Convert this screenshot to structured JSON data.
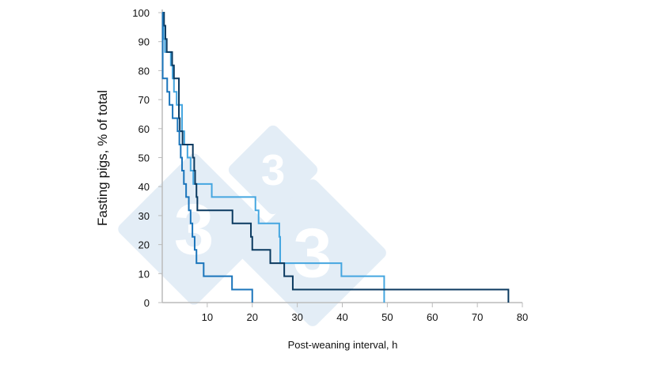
{
  "chart_data": {
    "type": "line",
    "step": true,
    "title": "",
    "xlabel": "Post-weaning interval, h",
    "ylabel": "Fasting pigs, % of total",
    "xlim": [
      0,
      80
    ],
    "ylim": [
      0,
      100
    ],
    "xticks": [
      10,
      20,
      30,
      40,
      50,
      60,
      70,
      80
    ],
    "yticks": [
      0,
      10,
      20,
      30,
      40,
      50,
      60,
      70,
      80,
      90,
      100
    ],
    "grid": false,
    "legend": "none",
    "series": [
      {
        "color": "#45a6e0",
        "points": [
          [
            0,
            100
          ],
          [
            0.3,
            90.9
          ],
          [
            0.6,
            86.4
          ],
          [
            1.9,
            81.8
          ],
          [
            2.3,
            77.3
          ],
          [
            2.6,
            72.7
          ],
          [
            3.2,
            68.2
          ],
          [
            4.4,
            59.1
          ],
          [
            4.9,
            54.5
          ],
          [
            5.6,
            50
          ],
          [
            6.3,
            45.5
          ],
          [
            6.9,
            40.9
          ],
          [
            11.0,
            36.4
          ],
          [
            20.7,
            31.8
          ],
          [
            21.4,
            27.3
          ],
          [
            26.0,
            22.7
          ],
          [
            26.2,
            13.6
          ],
          [
            39.8,
            9.1
          ],
          [
            49.3,
            0
          ]
        ]
      },
      {
        "color": "#0b3a60",
        "points": [
          [
            0,
            100
          ],
          [
            0.4,
            95.5
          ],
          [
            0.7,
            90.9
          ],
          [
            1.0,
            86.4
          ],
          [
            2.2,
            81.8
          ],
          [
            2.6,
            77.3
          ],
          [
            3.7,
            63.6
          ],
          [
            3.9,
            59.1
          ],
          [
            4.5,
            54.5
          ],
          [
            6.8,
            50
          ],
          [
            7.1,
            45.5
          ],
          [
            7.3,
            40.9
          ],
          [
            7.6,
            36.4
          ],
          [
            7.8,
            31.8
          ],
          [
            15.6,
            27.3
          ],
          [
            19.7,
            22.7
          ],
          [
            20.0,
            18.2
          ],
          [
            24.0,
            13.6
          ],
          [
            27.1,
            9.1
          ],
          [
            29.0,
            4.5
          ],
          [
            76.9,
            0
          ]
        ]
      },
      {
        "color": "#1b75bb",
        "points": [
          [
            0,
            100
          ],
          [
            0.1,
            77.3
          ],
          [
            1.1,
            72.7
          ],
          [
            1.6,
            68.2
          ],
          [
            2.3,
            63.6
          ],
          [
            3.4,
            59.1
          ],
          [
            3.8,
            54.5
          ],
          [
            4.1,
            50
          ],
          [
            4.4,
            45.5
          ],
          [
            4.8,
            40.9
          ],
          [
            5.3,
            36.4
          ],
          [
            5.9,
            31.8
          ],
          [
            6.3,
            27.3
          ],
          [
            6.7,
            22.7
          ],
          [
            7.2,
            18.2
          ],
          [
            7.6,
            13.6
          ],
          [
            9.2,
            9.1
          ],
          [
            15.5,
            4.5
          ],
          [
            20.0,
            0
          ]
        ]
      }
    ]
  },
  "watermark": {
    "glyph": "3",
    "color": "#e3edf6"
  }
}
